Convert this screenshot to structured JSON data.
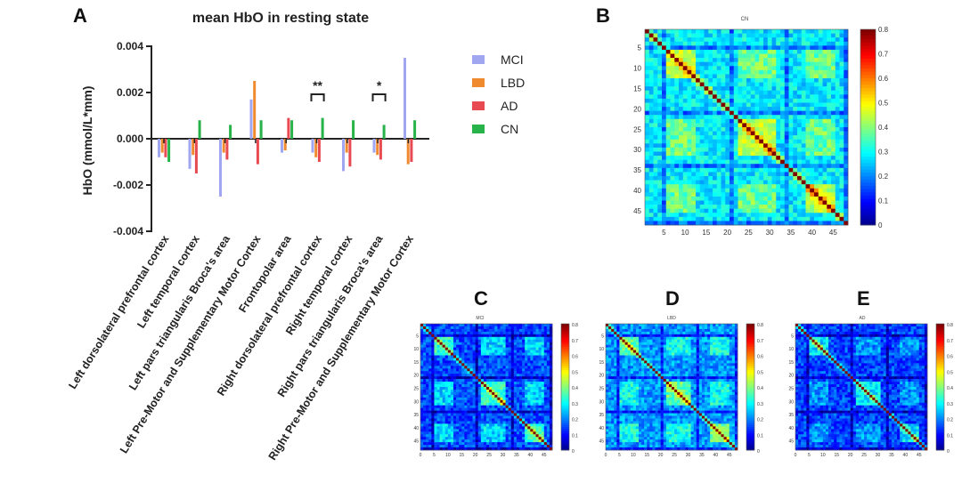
{
  "panels": {
    "a": "A",
    "b": "B",
    "c": "C",
    "d": "D",
    "e": "E"
  },
  "chart_data": [
    {
      "type": "bar",
      "title": "mean HbO in resting state",
      "xlabel": "",
      "ylabel": "HbO (mmol/L*mm)",
      "ylim": [
        -0.004,
        0.004
      ],
      "yticks": [
        "0.004",
        "0.002",
        "0.000",
        "-0.002",
        "-0.004"
      ],
      "ytick_values": [
        0.004,
        0.002,
        0.0,
        -0.002,
        -0.004
      ],
      "categories": [
        "Left dorsolateral prefrontal cortex",
        "Left temporal cortex",
        "Left pars triangularis Broca's area",
        "Left Pre-Motor and Supplementary Motor Cortex",
        "Frontopolar area",
        "Right dorsolateral prefrontal cortex",
        "Right temporal cortex",
        "Right pars triangularis Broca's area",
        "Right Pre-Motor and Supplementary Motor Cortex"
      ],
      "series": [
        {
          "name": "MCI",
          "color": "#a0a6f0",
          "values": [
            -0.0008,
            -0.0013,
            -0.0025,
            0.0017,
            -0.0006,
            -0.0006,
            -0.0014,
            -0.0006,
            0.0035
          ]
        },
        {
          "name": "LBD",
          "color": "#f08a2e",
          "values": [
            -0.0006,
            -0.0007,
            -0.0006,
            0.0025,
            -0.0005,
            -0.0008,
            -0.0006,
            -0.0007,
            -0.0011
          ]
        },
        {
          "name": "AD",
          "color": "#e84a52",
          "values": [
            -0.0008,
            -0.0015,
            -0.0009,
            -0.0011,
            0.0009,
            -0.001,
            -0.0012,
            -0.0009,
            -0.001
          ]
        },
        {
          "name": "CN",
          "color": "#27b34a",
          "values": [
            -0.001,
            0.0008,
            0.0006,
            0.0008,
            0.0008,
            0.0009,
            0.0008,
            0.0006,
            0.0008
          ]
        }
      ],
      "annotations": [
        {
          "text": "**",
          "category": "Right dorsolateral prefrontal cortex"
        },
        {
          "text": "*",
          "category": "Right pars triangularis Broca's area"
        }
      ]
    },
    {
      "type": "heatmap",
      "panel": "B",
      "title": "CN",
      "xticks": [
        5,
        10,
        15,
        20,
        25,
        30,
        35,
        40,
        45
      ],
      "yticks": [
        5,
        10,
        15,
        20,
        25,
        30,
        35,
        40,
        45
      ],
      "colorbar_ticks": [
        "0.8",
        "0.7",
        "0.6",
        "0.5",
        "0.4",
        "0.3",
        "0.2",
        "0.1",
        "0"
      ],
      "clim": [
        0,
        0.8
      ],
      "size": 48
    },
    {
      "type": "heatmap",
      "panel": "C",
      "title": "MCI",
      "clim": [
        0,
        0.8
      ],
      "size": 48
    },
    {
      "type": "heatmap",
      "panel": "D",
      "title": "LBD",
      "clim": [
        0,
        0.8
      ],
      "size": 48
    },
    {
      "type": "heatmap",
      "panel": "E",
      "title": "AD",
      "clim": [
        0,
        0.8
      ],
      "size": 48
    }
  ],
  "small_xticks": [
    "0",
    "5",
    "10",
    "15",
    "20",
    "25",
    "30",
    "35",
    "40",
    "45"
  ],
  "small_yticks": [
    "5",
    "10",
    "15",
    "20",
    "25",
    "30",
    "35",
    "40",
    "45"
  ],
  "small_cbar_ticks": [
    "0.8",
    "0.7",
    "0.6",
    "0.5",
    "0.4",
    "0.3",
    "0.2",
    "0.1",
    "0"
  ]
}
